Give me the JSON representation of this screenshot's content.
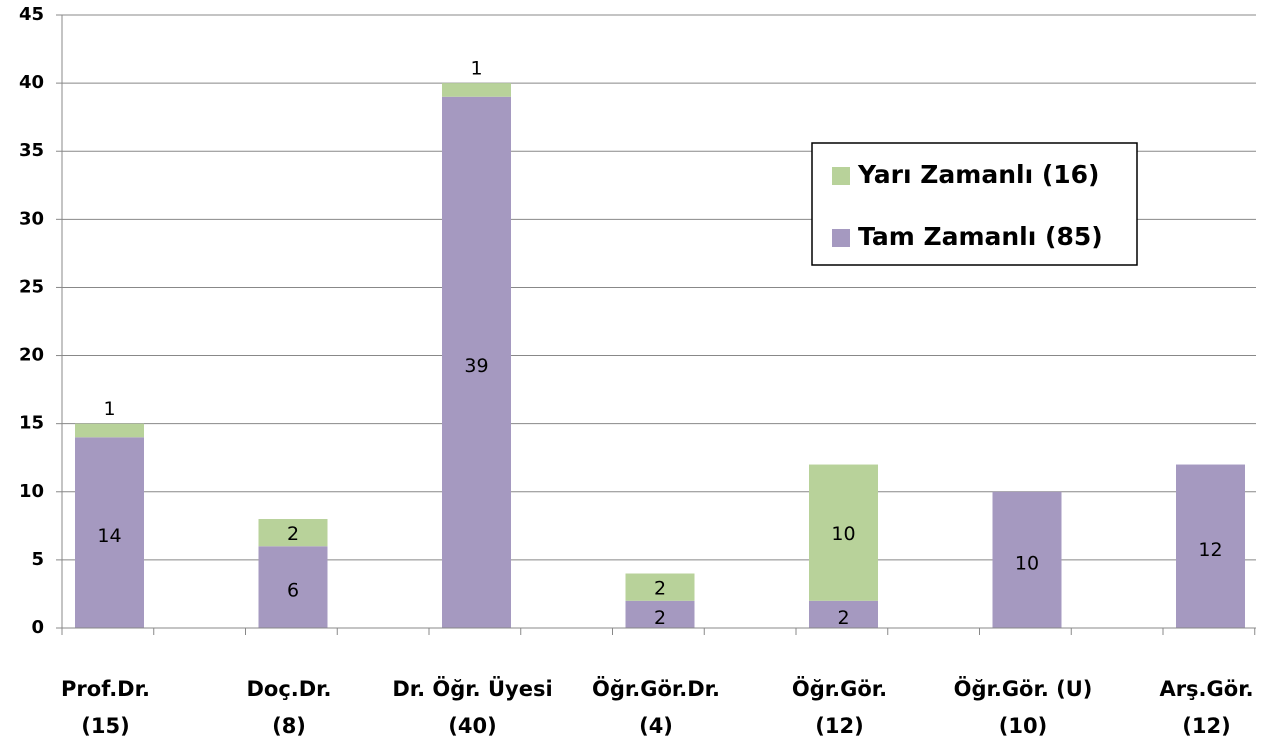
{
  "chart_data": {
    "type": "stacked_bar",
    "categories": [
      [
        "Prof.Dr.",
        "(15)"
      ],
      [
        "Doç.Dr.",
        "(8)"
      ],
      [
        "Dr. Öğr. Üyesi",
        "(40)"
      ],
      [
        "Öğr.Gör.Dr.",
        "(4)"
      ],
      [
        "Öğr.Gör.",
        "(12)"
      ],
      [
        "Öğr.Gör. (U)",
        "(10)"
      ],
      [
        "Arş.Gör.",
        "(12)"
      ]
    ],
    "series": [
      {
        "name": "Tam Zamanlı (85)",
        "color": "#a599c0",
        "values": [
          14,
          6,
          39,
          2,
          2,
          10,
          12
        ]
      },
      {
        "name": "Yarı Zamanlı (16)",
        "color": "#b8d29a",
        "values": [
          1,
          2,
          1,
          2,
          10,
          null,
          null
        ]
      }
    ],
    "ylim": [
      0,
      45
    ],
    "yticks": [
      0,
      5,
      10,
      15,
      20,
      25,
      30,
      35,
      40,
      45
    ],
    "grid": true
  }
}
